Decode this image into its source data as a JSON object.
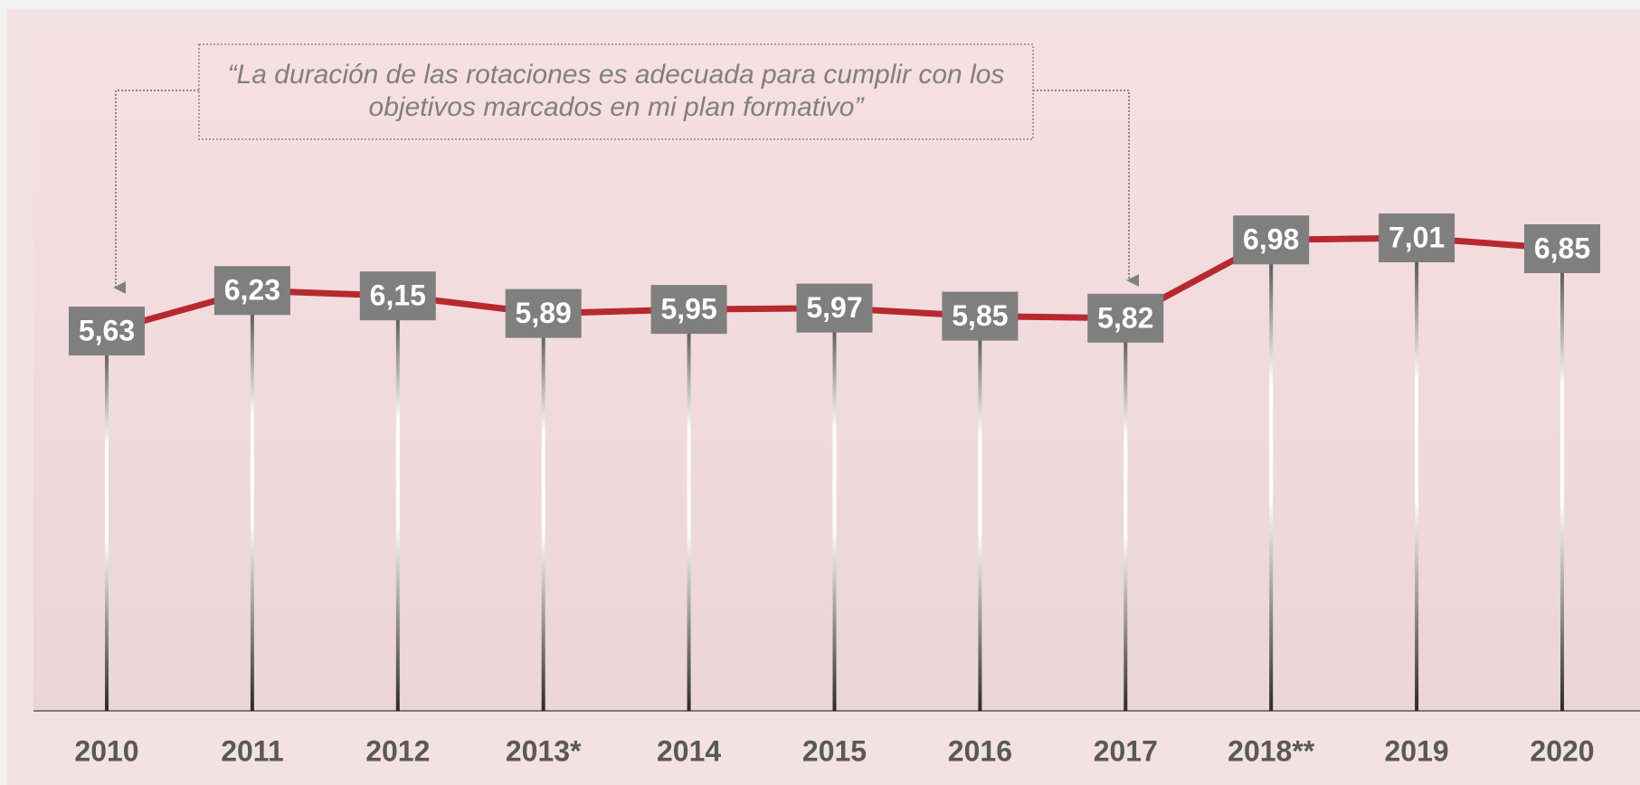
{
  "chart_data": {
    "type": "line",
    "annotation": [
      "“La duración de las rotaciones es adecuada para cumplir con los",
      "objetivos marcados en mi plan formativo”"
    ],
    "categories": [
      "2010",
      "2011",
      "2012",
      "2013*",
      "2014",
      "2015",
      "2016",
      "2017",
      "2018**",
      "2019",
      "2020"
    ],
    "values": [
      5.63,
      6.23,
      6.15,
      5.89,
      5.95,
      5.97,
      5.85,
      5.82,
      6.98,
      7.01,
      6.85
    ],
    "value_labels": [
      "5,63",
      "6,23",
      "6,15",
      "5,89",
      "5,95",
      "5,97",
      "5,85",
      "5,82",
      "6,98",
      "7,01",
      "6,85"
    ],
    "color": "#b8282f",
    "ylim": [
      0,
      10
    ]
  }
}
